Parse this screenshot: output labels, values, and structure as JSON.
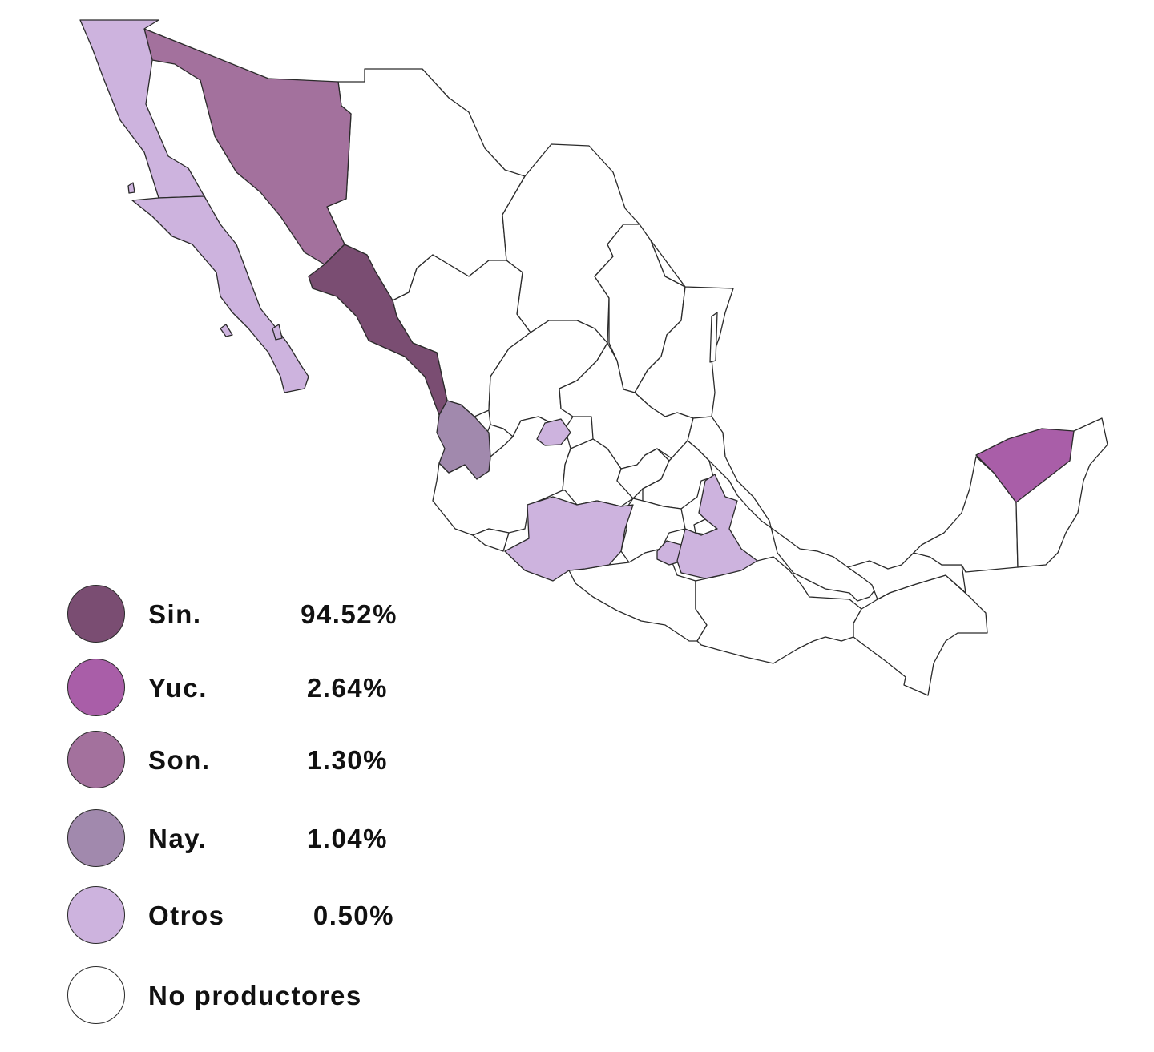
{
  "legend": [
    {
      "label": "Sin.",
      "value": "94.52%",
      "color": "#7a4d72"
    },
    {
      "label": "Yuc.",
      "value": "2.64%",
      "color": "#a95ea8"
    },
    {
      "label": "Son.",
      "value": "1.30%",
      "color": "#a3719d"
    },
    {
      "label": "Nay.",
      "value": "1.04%",
      "color": "#a189ad"
    },
    {
      "label": "Otros",
      "value": "0.50%",
      "color": "#cdb3de"
    },
    {
      "label": "No productores",
      "value": "",
      "color": "#ffffff"
    }
  ]
}
